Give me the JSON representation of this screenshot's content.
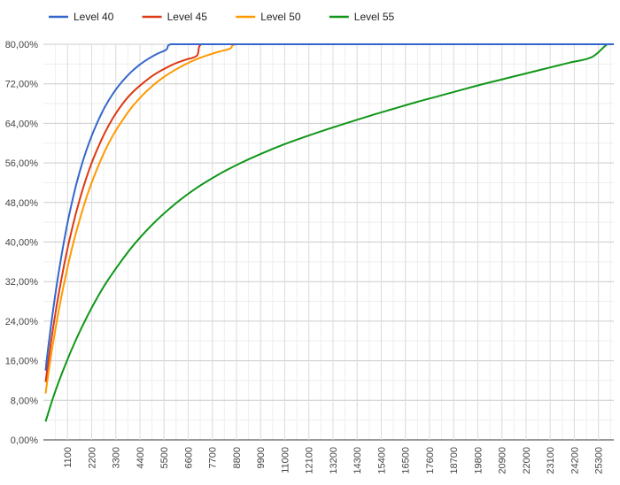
{
  "chart_data": {
    "type": "line",
    "title": "",
    "xlabel": "",
    "ylabel": "",
    "xlim": [
      0,
      26000
    ],
    "ylim": [
      0,
      0.8
    ],
    "legend_position": "top-left",
    "grid": true,
    "y_ticks": [
      {
        "value": 0.0,
        "label": "0,00%"
      },
      {
        "value": 0.08,
        "label": "8,00%"
      },
      {
        "value": 0.16,
        "label": "16,00%"
      },
      {
        "value": 0.24,
        "label": "24,00%"
      },
      {
        "value": 0.32,
        "label": "32,00%"
      },
      {
        "value": 0.4,
        "label": "40,00%"
      },
      {
        "value": 0.48,
        "label": "48,00%"
      },
      {
        "value": 0.56,
        "label": "56,00%"
      },
      {
        "value": 0.64,
        "label": "64,00%"
      },
      {
        "value": 0.72,
        "label": "72,00%"
      },
      {
        "value": 0.8,
        "label": "80,00%"
      }
    ],
    "x_ticks": [
      {
        "value": 1100,
        "label": "1100"
      },
      {
        "value": 2200,
        "label": "2200"
      },
      {
        "value": 3300,
        "label": "3300"
      },
      {
        "value": 4400,
        "label": "4400"
      },
      {
        "value": 5500,
        "label": "5500"
      },
      {
        "value": 6600,
        "label": "6600"
      },
      {
        "value": 7700,
        "label": "7700"
      },
      {
        "value": 8800,
        "label": "8800"
      },
      {
        "value": 9900,
        "label": "9900"
      },
      {
        "value": 11000,
        "label": "11000"
      },
      {
        "value": 12100,
        "label": "12100"
      },
      {
        "value": 13200,
        "label": "13200"
      },
      {
        "value": 14300,
        "label": "14300"
      },
      {
        "value": 15400,
        "label": "15400"
      },
      {
        "value": 16500,
        "label": "16500"
      },
      {
        "value": 17600,
        "label": "17600"
      },
      {
        "value": 18700,
        "label": "18700"
      },
      {
        "value": 19800,
        "label": "19800"
      },
      {
        "value": 20900,
        "label": "20900"
      },
      {
        "value": 22000,
        "label": "22000"
      },
      {
        "value": 23100,
        "label": "23100"
      },
      {
        "value": 24200,
        "label": "24200"
      },
      {
        "value": 25300,
        "label": "25300"
      }
    ],
    "series": [
      {
        "name": "Level 40",
        "color": "#3366cc",
        "x": [
          100,
          200,
          400,
          600,
          800,
          1000,
          1200,
          1500,
          1800,
          2100,
          2400,
          2800,
          3200,
          3600,
          4000,
          4400,
          4800,
          5200,
          5600,
          5800,
          26000
        ],
        "y": [
          0.14,
          0.18,
          0.249,
          0.311,
          0.366,
          0.416,
          0.46,
          0.517,
          0.564,
          0.603,
          0.636,
          0.673,
          0.702,
          0.725,
          0.744,
          0.759,
          0.771,
          0.781,
          0.789,
          0.8,
          0.8
        ]
      },
      {
        "name": "Level 45",
        "color": "#dc3912",
        "x": [
          100,
          200,
          400,
          600,
          800,
          1000,
          1200,
          1500,
          1800,
          2100,
          2400,
          2800,
          3200,
          3600,
          4000,
          4500,
          5000,
          5500,
          6000,
          6500,
          7000,
          7200,
          26000
        ],
        "y": [
          0.117,
          0.151,
          0.214,
          0.27,
          0.32,
          0.366,
          0.407,
          0.461,
          0.508,
          0.548,
          0.582,
          0.621,
          0.653,
          0.679,
          0.7,
          0.72,
          0.737,
          0.75,
          0.761,
          0.769,
          0.777,
          0.8,
          0.8
        ]
      },
      {
        "name": "Level 50",
        "color": "#ff9900",
        "x": [
          100,
          200,
          400,
          600,
          800,
          1000,
          1300,
          1600,
          2000,
          2400,
          2800,
          3200,
          3600,
          4000,
          4500,
          5000,
          5500,
          6000,
          6500,
          7000,
          7500,
          8000,
          8500,
          8800,
          26000
        ],
        "y": [
          0.094,
          0.126,
          0.185,
          0.237,
          0.285,
          0.328,
          0.387,
          0.437,
          0.495,
          0.543,
          0.584,
          0.618,
          0.646,
          0.671,
          0.696,
          0.717,
          0.734,
          0.748,
          0.76,
          0.77,
          0.778,
          0.785,
          0.791,
          0.8,
          0.8
        ]
      },
      {
        "name": "Level 55",
        "color": "#109618",
        "x": [
          100,
          500,
          1000,
          1500,
          2000,
          2500,
          3000,
          4000,
          5000,
          6000,
          7000,
          8000,
          9000,
          10000,
          11000,
          12000,
          13000,
          14000,
          15000,
          16000,
          17000,
          18000,
          19000,
          20000,
          21000,
          22000,
          23000,
          24000,
          25000,
          25700,
          26000
        ],
        "y": [
          0.037,
          0.093,
          0.152,
          0.204,
          0.25,
          0.291,
          0.327,
          0.388,
          0.437,
          0.477,
          0.51,
          0.537,
          0.56,
          0.58,
          0.598,
          0.614,
          0.629,
          0.643,
          0.657,
          0.67,
          0.683,
          0.695,
          0.707,
          0.719,
          0.73,
          0.741,
          0.752,
          0.763,
          0.774,
          0.8,
          0.8
        ]
      }
    ]
  }
}
